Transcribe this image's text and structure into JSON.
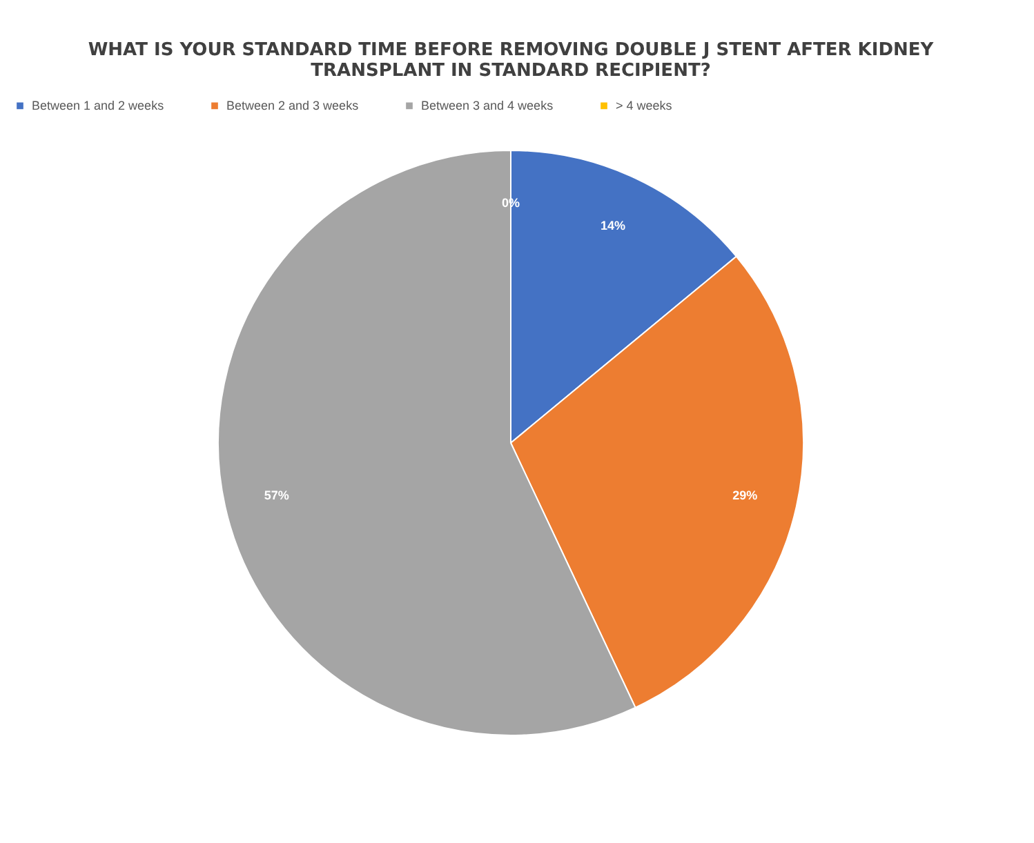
{
  "chart_data": {
    "type": "pie",
    "title": "WHAT IS YOUR STANDARD TIME BEFORE REMOVING DOUBLE J STENT AFTER KIDNEY TRANSPLANT IN STANDARD RECIPIENT?",
    "categories": [
      "Between 1 and 2 weeks",
      "Between 2 and 3 weeks",
      "Between 3 and 4 weeks",
      "> 4 weeks"
    ],
    "values": [
      14,
      29,
      57,
      0
    ],
    "colors": [
      "#4472c4",
      "#ed7d31",
      "#a5a5a5",
      "#ffc000"
    ],
    "value_labels": [
      "14%",
      "29%",
      "57%",
      "0%"
    ],
    "legend": "top"
  }
}
